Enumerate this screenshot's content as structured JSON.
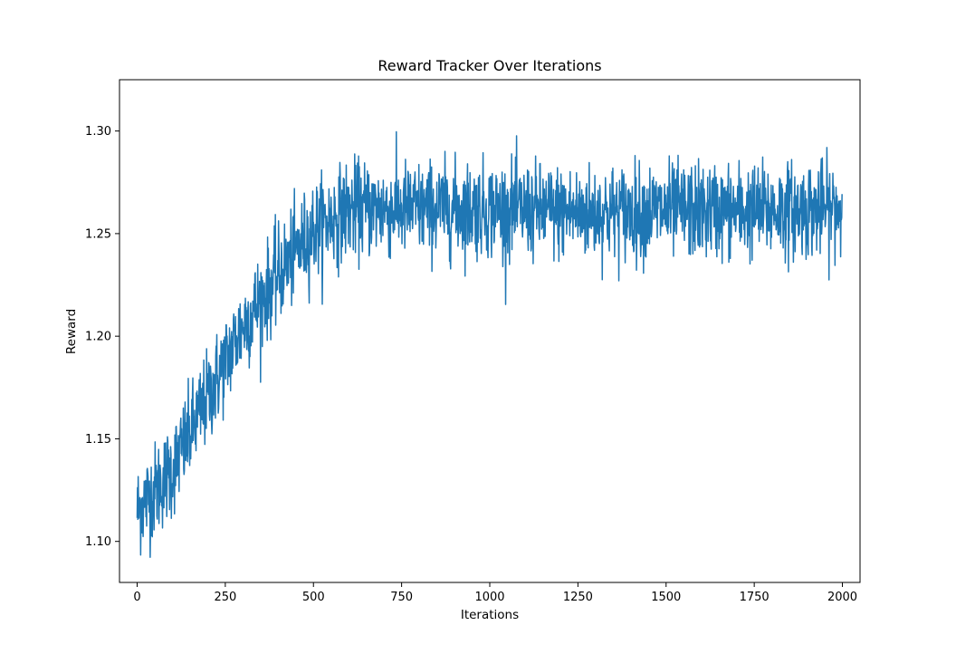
{
  "chart_data": {
    "type": "line",
    "title": "Reward Tracker Over Iterations",
    "xlabel": "Iterations",
    "ylabel": "Reward",
    "xlim": [
      -50,
      2050
    ],
    "ylim": [
      1.08,
      1.325
    ],
    "x_ticks": [
      0,
      250,
      500,
      750,
      1000,
      1250,
      1500,
      1750,
      2000
    ],
    "x_tick_labels": [
      "0",
      "250",
      "500",
      "750",
      "1000",
      "1250",
      "1500",
      "1750",
      "2000"
    ],
    "y_ticks": [
      1.1,
      1.15,
      1.2,
      1.25,
      1.3
    ],
    "y_tick_labels": [
      "1.10",
      "1.15",
      "1.20",
      "1.25",
      "1.30"
    ],
    "grid": false,
    "legend": "none",
    "series": [
      {
        "color": "#1f77b4",
        "x_start": 0,
        "x_end": 1999,
        "x_step": 1,
        "trend_points": [
          [
            0,
            1.115
          ],
          [
            100,
            1.135
          ],
          [
            200,
            1.17
          ],
          [
            300,
            1.205
          ],
          [
            400,
            1.23
          ],
          [
            500,
            1.252
          ],
          [
            600,
            1.262
          ],
          [
            750,
            1.262
          ],
          [
            1000,
            1.262
          ],
          [
            1250,
            1.26
          ],
          [
            1500,
            1.261
          ],
          [
            1750,
            1.261
          ],
          [
            1999,
            1.262
          ]
        ],
        "noise_amplitude": 0.014,
        "observed_min": 1.091,
        "observed_max": 1.315
      }
    ]
  }
}
